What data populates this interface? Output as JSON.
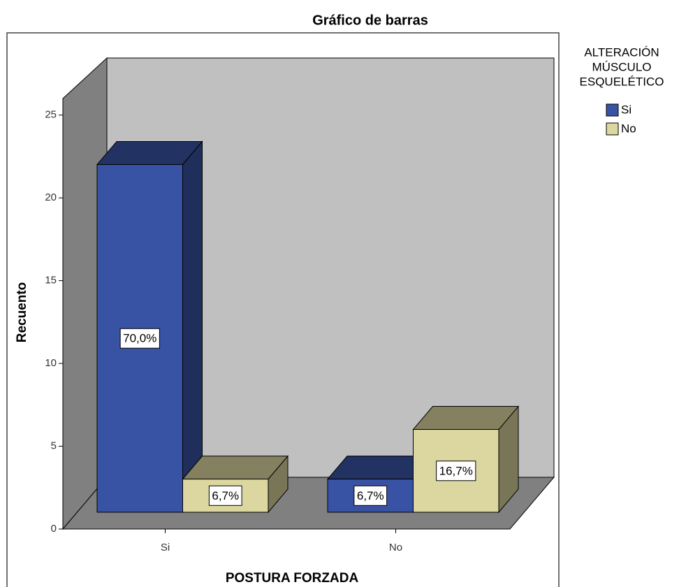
{
  "chart_data": {
    "type": "bar3d",
    "title": "Gráfico de barras",
    "x_label": "POSTURA FORZADA",
    "y_label": "Recuento",
    "legend_title": [
      "ALTERACIÓN",
      "MÚSCULO",
      "ESQUELÉTICO"
    ],
    "categories": [
      "Si",
      "No"
    ],
    "series": [
      {
        "name": "Si",
        "color": "#3953a4",
        "values": [
          21,
          2
        ],
        "value_labels": [
          "70,0%",
          "6,7%"
        ]
      },
      {
        "name": "No",
        "color": "#dcd6a0",
        "values": [
          2,
          5
        ],
        "value_labels": [
          "6,7%",
          "16,7%"
        ]
      }
    ],
    "ylim": [
      0,
      26
    ],
    "yticks": [
      0,
      5,
      10,
      15,
      20,
      25
    ],
    "legend": "right"
  }
}
